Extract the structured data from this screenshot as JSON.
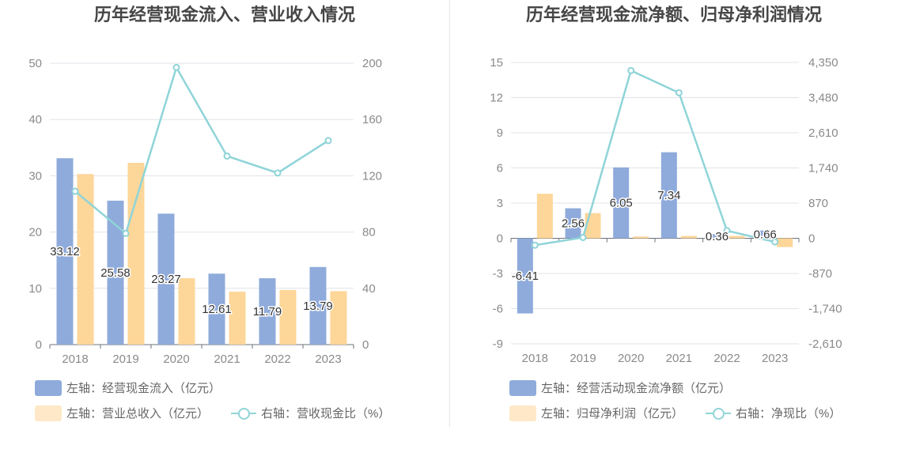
{
  "colors": {
    "bar1": "#8fabdb",
    "bar2": "#fdd699",
    "line": "#8fd4d8",
    "grid": "#e0e3ea",
    "axis": "#6e7079",
    "tick": "#8a8a8a"
  },
  "chart_data": [
    {
      "type": "bar+line",
      "title": "历年经营现金流入、营业收入情况",
      "categories": [
        "2018",
        "2019",
        "2020",
        "2021",
        "2022",
        "2023"
      ],
      "y_left": {
        "min": 0,
        "max": 50,
        "ticks": [
          "0",
          "10",
          "20",
          "30",
          "40",
          "50"
        ]
      },
      "y_right": {
        "min": 0,
        "max": 200,
        "ticks": [
          "0",
          "40",
          "80",
          "120",
          "160",
          "200"
        ]
      },
      "series": [
        {
          "name": "左轴：经营现金流入（亿元）",
          "axis": "left",
          "kind": "bar",
          "values": [
            33.12,
            25.58,
            23.27,
            12.61,
            11.79,
            13.79
          ],
          "labels": [
            "33.12",
            "25.58",
            "23.27",
            "12.61",
            "11.79",
            "13.79"
          ]
        },
        {
          "name": "左轴：营业总收入（亿元）",
          "axis": "left",
          "kind": "bar",
          "values": [
            30.3,
            32.3,
            11.8,
            9.4,
            9.7,
            9.5
          ]
        },
        {
          "name": "右轴：营收现金比（%）",
          "axis": "right",
          "kind": "line",
          "values": [
            109,
            79,
            197,
            134,
            122,
            145
          ]
        }
      ]
    },
    {
      "type": "bar+line",
      "title": "历年经营现金流净额、归母净利润情况",
      "categories": [
        "2018",
        "2019",
        "2020",
        "2021",
        "2022",
        "2023"
      ],
      "y_left": {
        "min": -9,
        "max": 15,
        "ticks": [
          "-9",
          "-6",
          "-3",
          "0",
          "3",
          "6",
          "9",
          "12",
          "15"
        ]
      },
      "y_right": {
        "min": -2610,
        "max": 4350,
        "ticks": [
          "-2,610",
          "-1,740",
          "-870",
          "0",
          "870",
          "1,740",
          "2,610",
          "3,480",
          "4,350"
        ]
      },
      "series": [
        {
          "name": "左轴：经营活动现金流净额（亿元）",
          "axis": "left",
          "kind": "bar",
          "values": [
            -6.41,
            2.56,
            6.05,
            7.34,
            0.36,
            0.66
          ],
          "labels": [
            "-6.41",
            "2.56",
            "6.05",
            "7.34",
            "0.36",
            "0.66"
          ]
        },
        {
          "name": "左轴：归母净利润（亿元）",
          "axis": "left",
          "kind": "bar",
          "values": [
            3.8,
            2.15,
            0.15,
            0.2,
            0.2,
            -0.75
          ]
        },
        {
          "name": "右轴：净现比（%）",
          "axis": "right",
          "kind": "line",
          "values": [
            -170,
            20,
            4150,
            3600,
            190,
            -90
          ]
        }
      ]
    }
  ]
}
